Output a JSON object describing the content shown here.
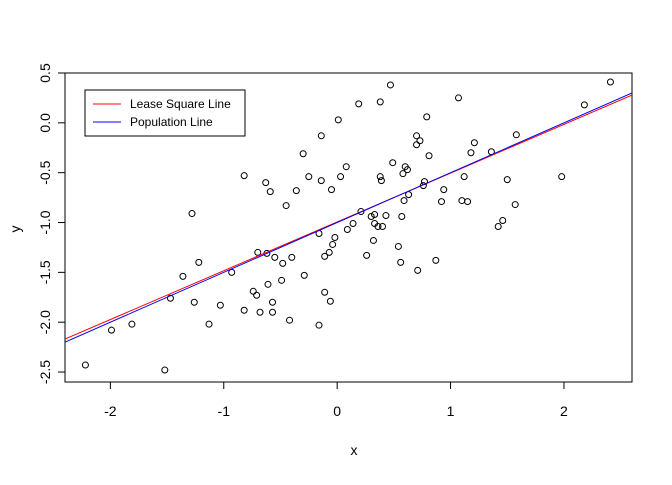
{
  "chart_data": {
    "type": "scatter",
    "title": "",
    "xlabel": "x",
    "ylabel": "y",
    "xlim": [
      -2.4,
      2.6
    ],
    "ylim": [
      -2.6,
      0.5
    ],
    "grid": false,
    "legend_position": "top-left",
    "x_ticks": [
      -2,
      -1,
      0,
      1,
      2
    ],
    "x_tick_labels": [
      "-2",
      "-1",
      "0",
      "1",
      "2"
    ],
    "y_ticks": [
      -2.5,
      -2.0,
      -1.5,
      -1.0,
      -0.5,
      0.0,
      0.5
    ],
    "y_tick_labels": [
      "-2.5",
      "-2.0",
      "-1.5",
      "-1.0",
      "-0.5",
      "0.0",
      "0.5"
    ],
    "points": [
      [
        -2.22,
        -2.43
      ],
      [
        -1.99,
        -2.08
      ],
      [
        -1.81,
        -2.02
      ],
      [
        -1.52,
        -2.48
      ],
      [
        -1.47,
        -1.76
      ],
      [
        -1.36,
        -1.54
      ],
      [
        -1.26,
        -1.8
      ],
      [
        -1.28,
        -0.91
      ],
      [
        -1.22,
        -1.4
      ],
      [
        -1.13,
        -2.02
      ],
      [
        -1.03,
        -1.83
      ],
      [
        -0.93,
        -1.5
      ],
      [
        -0.82,
        -1.88
      ],
      [
        -0.82,
        -0.53
      ],
      [
        -0.74,
        -1.69
      ],
      [
        -0.71,
        -1.73
      ],
      [
        -0.7,
        -1.3
      ],
      [
        -0.68,
        -1.9
      ],
      [
        -0.63,
        -0.6
      ],
      [
        -0.62,
        -1.31
      ],
      [
        -0.61,
        -1.62
      ],
      [
        -0.59,
        -0.69
      ],
      [
        -0.57,
        -1.8
      ],
      [
        -0.57,
        -1.9
      ],
      [
        -0.55,
        -1.35
      ],
      [
        -0.49,
        -1.58
      ],
      [
        -0.48,
        -1.41
      ],
      [
        -0.45,
        -0.83
      ],
      [
        -0.42,
        -1.98
      ],
      [
        -0.4,
        -1.35
      ],
      [
        -0.36,
        -0.68
      ],
      [
        -0.3,
        -0.31
      ],
      [
        -0.29,
        -1.53
      ],
      [
        -0.25,
        -0.54
      ],
      [
        -0.16,
        -2.03
      ],
      [
        -0.16,
        -1.11
      ],
      [
        -0.14,
        -0.13
      ],
      [
        -0.14,
        -0.58
      ],
      [
        -0.11,
        -1.34
      ],
      [
        -0.11,
        -1.7
      ],
      [
        -0.07,
        -1.3
      ],
      [
        -0.06,
        -1.79
      ],
      [
        -0.05,
        -0.67
      ],
      [
        -0.04,
        -1.22
      ],
      [
        -0.02,
        -1.15
      ],
      [
        0.01,
        0.03
      ],
      [
        0.03,
        -0.54
      ],
      [
        0.08,
        -0.44
      ],
      [
        0.09,
        -1.07
      ],
      [
        0.14,
        -1.01
      ],
      [
        0.19,
        0.19
      ],
      [
        0.21,
        -0.89
      ],
      [
        0.26,
        -1.33
      ],
      [
        0.3,
        -0.94
      ],
      [
        0.32,
        -1.18
      ],
      [
        0.33,
        -0.92
      ],
      [
        0.33,
        -1.01
      ],
      [
        0.36,
        -1.04
      ],
      [
        0.38,
        0.21
      ],
      [
        0.38,
        -0.54
      ],
      [
        0.39,
        -0.58
      ],
      [
        0.4,
        -1.04
      ],
      [
        0.43,
        -0.93
      ],
      [
        0.47,
        0.38
      ],
      [
        0.49,
        -0.4
      ],
      [
        0.54,
        -1.24
      ],
      [
        0.56,
        -1.4
      ],
      [
        0.57,
        -0.94
      ],
      [
        0.58,
        -0.51
      ],
      [
        0.59,
        -0.78
      ],
      [
        0.6,
        -0.44
      ],
      [
        0.62,
        -0.47
      ],
      [
        0.63,
        -0.72
      ],
      [
        0.7,
        -0.13
      ],
      [
        0.7,
        -0.22
      ],
      [
        0.71,
        -1.48
      ],
      [
        0.73,
        -0.18
      ],
      [
        0.76,
        -0.63
      ],
      [
        0.77,
        -0.59
      ],
      [
        0.79,
        0.06
      ],
      [
        0.81,
        -0.33
      ],
      [
        0.87,
        -1.38
      ],
      [
        0.92,
        -0.79
      ],
      [
        0.94,
        -0.67
      ],
      [
        1.07,
        0.25
      ],
      [
        1.1,
        -0.78
      ],
      [
        1.12,
        -0.54
      ],
      [
        1.15,
        -0.79
      ],
      [
        1.18,
        -0.3
      ],
      [
        1.21,
        -0.2
      ],
      [
        1.36,
        -0.29
      ],
      [
        1.42,
        -1.04
      ],
      [
        1.46,
        -0.98
      ],
      [
        1.5,
        -0.57
      ],
      [
        1.57,
        -0.82
      ],
      [
        1.58,
        -0.12
      ],
      [
        1.98,
        -0.54
      ],
      [
        2.18,
        0.18
      ],
      [
        2.41,
        0.41
      ]
    ],
    "lines": [
      {
        "name": "Lease Square Line",
        "color": "#ff0000",
        "intercept": -0.9943,
        "slope": 0.4895
      },
      {
        "name": "Population Line",
        "color": "#0000ff",
        "intercept": -1.0,
        "slope": 0.5
      }
    ]
  }
}
